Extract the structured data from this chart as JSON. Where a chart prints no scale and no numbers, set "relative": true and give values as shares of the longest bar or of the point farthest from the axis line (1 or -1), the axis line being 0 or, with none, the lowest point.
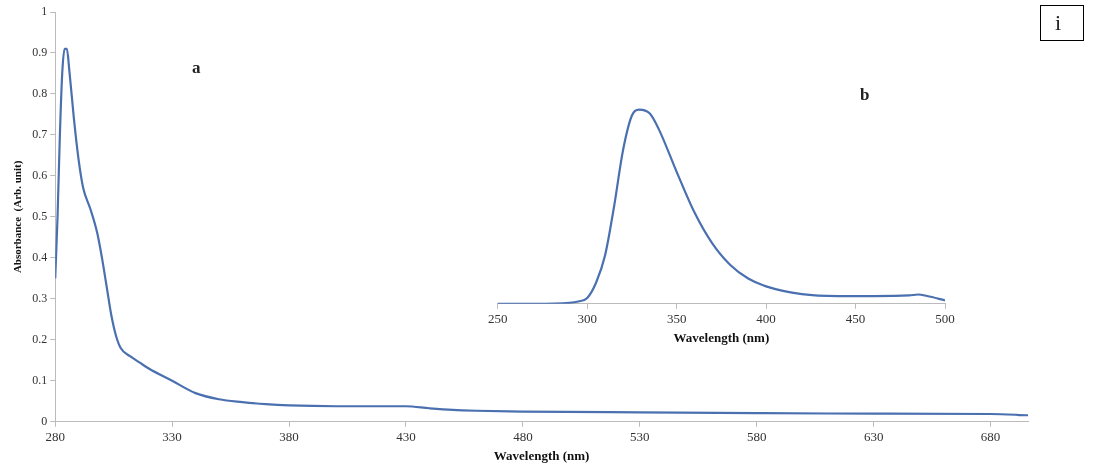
{
  "chart_data": [
    {
      "type": "line",
      "xlabel": "Wavelength (nm)",
      "ylabel": "Absorbance  (Arb. unit)",
      "annotations": [
        "a",
        "i"
      ],
      "xlim": [
        280,
        696
      ],
      "ylim": [
        0,
        1
      ],
      "xticks": [
        280,
        330,
        380,
        430,
        480,
        530,
        580,
        630,
        680
      ],
      "yticks": [
        0,
        0.1,
        0.2,
        0.3,
        0.4,
        0.5,
        0.6,
        0.7,
        0.8,
        0.9,
        1
      ],
      "grid": false,
      "marker": "none",
      "series": [
        {
          "color": "#4a70b0",
          "x": [
            280,
            281,
            282,
            283,
            284,
            285,
            286,
            288,
            290,
            292,
            295,
            298,
            300,
            302,
            304,
            306,
            308,
            312,
            316,
            320,
            330,
            340,
            350,
            360,
            370,
            380,
            400,
            420,
            430,
            440,
            450,
            460,
            480,
            530,
            580,
            630,
            680,
            696
          ],
          "values": [
            0.35,
            0.5,
            0.7,
            0.85,
            0.91,
            0.91,
            0.86,
            0.74,
            0.64,
            0.57,
            0.52,
            0.46,
            0.4,
            0.33,
            0.26,
            0.21,
            0.18,
            0.16,
            0.145,
            0.13,
            0.1,
            0.07,
            0.055,
            0.048,
            0.043,
            0.04,
            0.038,
            0.038,
            0.038,
            0.033,
            0.029,
            0.027,
            0.025,
            0.023,
            0.021,
            0.02,
            0.019,
            0.016
          ]
        }
      ]
    },
    {
      "type": "line",
      "xlabel": "Wavelength (nm)",
      "annotations": [
        "b"
      ],
      "relative": true,
      "tick_labels": "x",
      "xlim": [
        250,
        500
      ],
      "xticks": [
        250,
        300,
        350,
        400,
        450,
        500
      ],
      "grid": false,
      "marker": "none",
      "series": [
        {
          "color": "#4a70b0",
          "x": [
            250,
            270,
            290,
            295,
            300,
            305,
            310,
            315,
            320,
            325,
            329,
            335,
            340,
            350,
            360,
            370,
            380,
            390,
            400,
            420,
            440,
            460,
            480,
            485,
            490,
            500
          ],
          "values": [
            0,
            0,
            0.005,
            0.012,
            0.03,
            0.11,
            0.25,
            0.5,
            0.79,
            0.97,
            1,
            0.98,
            0.9,
            0.68,
            0.47,
            0.31,
            0.2,
            0.13,
            0.09,
            0.05,
            0.04,
            0.04,
            0.043,
            0.048,
            0.04,
            0.018
          ]
        }
      ]
    }
  ]
}
